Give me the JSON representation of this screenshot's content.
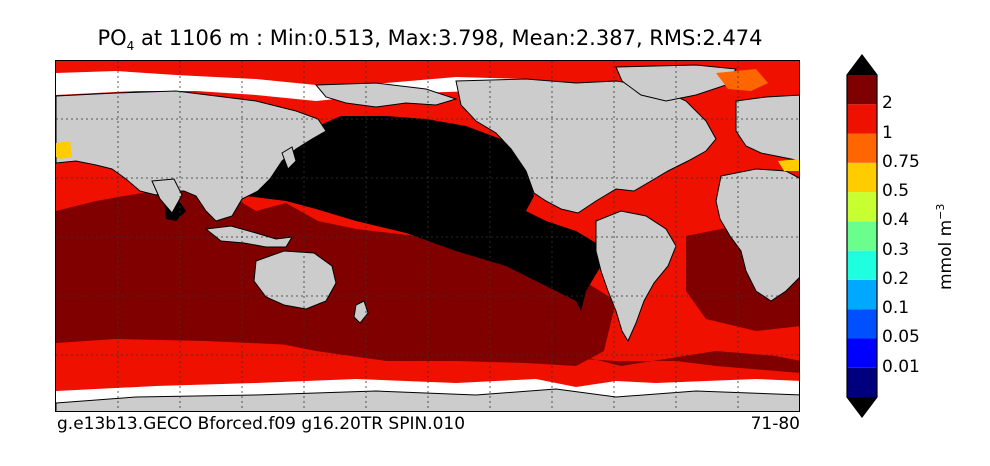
{
  "title": {
    "variable": "PO",
    "subscript": "4",
    "rest": " at 1106 m : Min:0.513, Max:3.798, Mean:2.387, RMS:2.474"
  },
  "footer": {
    "case_name": "g.e13b13.GECO Bforced.f09 g16.20TR SPIN.010",
    "years": "71-80"
  },
  "colorbar": {
    "units_base": "mmol m",
    "units_exp": "−3",
    "labels": [
      "2",
      "1",
      "0.75",
      "0.5",
      "0.4",
      "0.3",
      "0.2",
      "0.1",
      "0.05",
      "0.01"
    ],
    "colors": [
      "#00007f",
      "#0000ff",
      "#0050ff",
      "#00a8ff",
      "#1effe0",
      "#6aff8c",
      "#c8ff30",
      "#ffcc00",
      "#ff6600",
      "#ee1100",
      "#7f0000"
    ],
    "under_color": "#00007f",
    "over_color": "#000000"
  },
  "map": {
    "land_color": "#cccccc",
    "nodata_color": "#ffffff",
    "high_color": "#000000",
    "band_2_3_color": "#800000",
    "band_1_2_color": "#f01000"
  }
}
